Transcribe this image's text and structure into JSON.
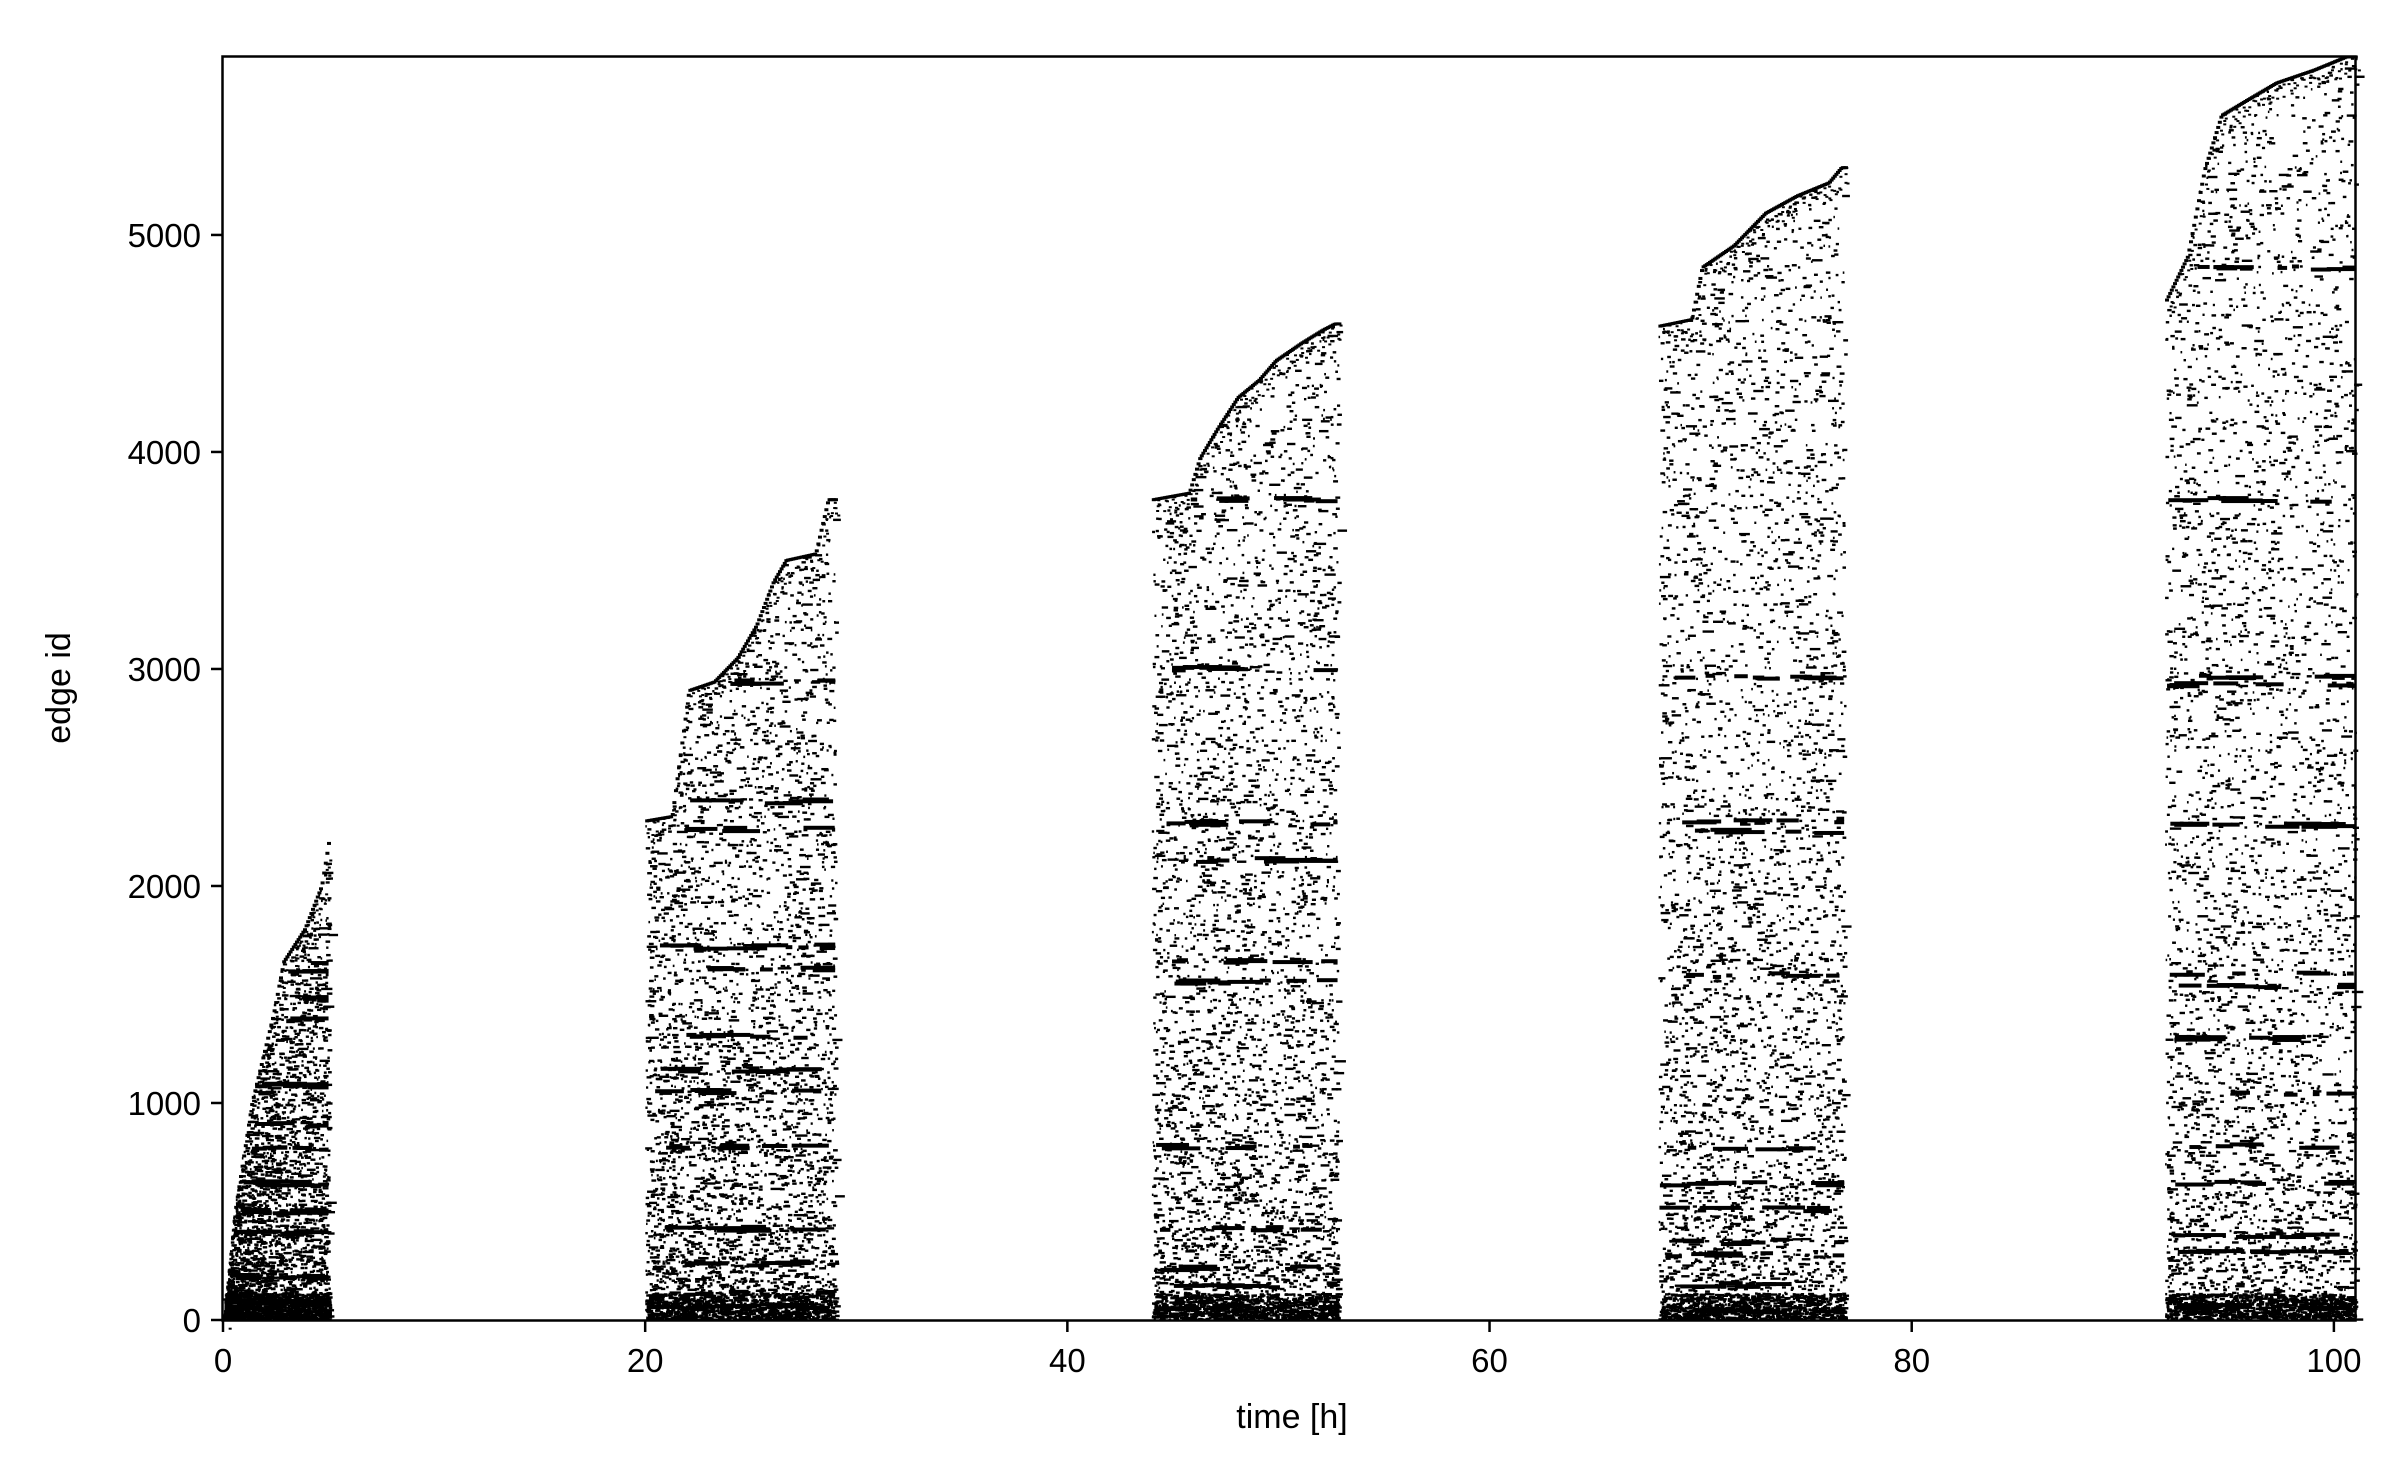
{
  "chart_data": {
    "type": "scatter",
    "marker": "short horizontal dash (event raster)",
    "title": "",
    "xlabel": "time [h]",
    "ylabel": "edge id",
    "xlim": [
      0,
      101
    ],
    "ylim": [
      0,
      5820
    ],
    "xticks": [
      0,
      20,
      40,
      60,
      80,
      100
    ],
    "xtick_labels": [
      "0",
      "20",
      "40",
      "60",
      "80",
      "100"
    ],
    "yticks": [
      0,
      1000,
      2000,
      3000,
      4000,
      5000
    ],
    "ytick_labels": [
      "0",
      "1000",
      "2000",
      "3000",
      "4000",
      "5000"
    ],
    "grid": false,
    "legend": "none",
    "colors": {
      "marks": "#000000",
      "background": "#ffffff",
      "axes": "#000000"
    },
    "series": [
      {
        "x_range": [
          0,
          5
        ],
        "frontier": [
          [
            0,
            0
          ],
          [
            0.5,
            500
          ],
          [
            1.3,
            1000
          ],
          [
            2.3,
            1400
          ],
          [
            2.8,
            1650
          ],
          [
            3.8,
            1800
          ],
          [
            4.6,
            2000
          ],
          [
            5.0,
            2240
          ]
        ],
        "dense_rows": [
          80,
          200,
          400,
          500,
          630,
          790,
          900,
          1080,
          1380,
          1480,
          1600,
          1650
        ]
      },
      {
        "x_range": [
          20,
          29
        ],
        "frontier": [
          [
            20,
            2300
          ],
          [
            21.2,
            2320
          ],
          [
            22.0,
            2900
          ],
          [
            23.2,
            2940
          ],
          [
            24.3,
            3050
          ],
          [
            25.2,
            3200
          ],
          [
            26.0,
            3400
          ],
          [
            26.6,
            3500
          ],
          [
            28.0,
            3530
          ],
          [
            28.6,
            3780
          ]
        ],
        "dense_rows": [
          60,
          120,
          260,
          420,
          800,
          1050,
          1150,
          1310,
          1620,
          1720,
          2260,
          2390,
          2940
        ]
      },
      {
        "x_range": [
          44,
          52.8
        ],
        "frontier": [
          [
            44,
            3780
          ],
          [
            45.7,
            3810
          ],
          [
            46.2,
            3970
          ],
          [
            47.0,
            4100
          ],
          [
            48.0,
            4250
          ],
          [
            49.0,
            4330
          ],
          [
            49.8,
            4420
          ],
          [
            51.0,
            4500
          ],
          [
            52.0,
            4560
          ],
          [
            52.6,
            4590
          ]
        ],
        "dense_rows": [
          60,
          160,
          240,
          420,
          800,
          1560,
          1650,
          2120,
          2290,
          3000,
          3780
        ]
      },
      {
        "x_range": [
          68,
          76.8
        ],
        "frontier": [
          [
            68,
            4580
          ],
          [
            69.5,
            4610
          ],
          [
            70.0,
            4850
          ],
          [
            71.5,
            4950
          ],
          [
            73.0,
            5100
          ],
          [
            74.5,
            5180
          ],
          [
            76.0,
            5240
          ],
          [
            76.6,
            5310
          ]
        ],
        "dense_rows": [
          40,
          160,
          300,
          360,
          510,
          630,
          790,
          1590,
          2250,
          2300,
          2960
        ]
      },
      {
        "x_range": [
          92,
          101
        ],
        "frontier": [
          [
            92,
            4700
          ],
          [
            93.0,
            4900
          ],
          [
            93.8,
            5300
          ],
          [
            94.6,
            5550
          ],
          [
            95.8,
            5620
          ],
          [
            97.2,
            5700
          ],
          [
            99.0,
            5760
          ],
          [
            100.5,
            5820
          ]
        ],
        "dense_rows": [
          60,
          320,
          390,
          630,
          800,
          1040,
          1300,
          1540,
          1600,
          2280,
          2930,
          2960,
          3780,
          4850
        ]
      }
    ]
  }
}
